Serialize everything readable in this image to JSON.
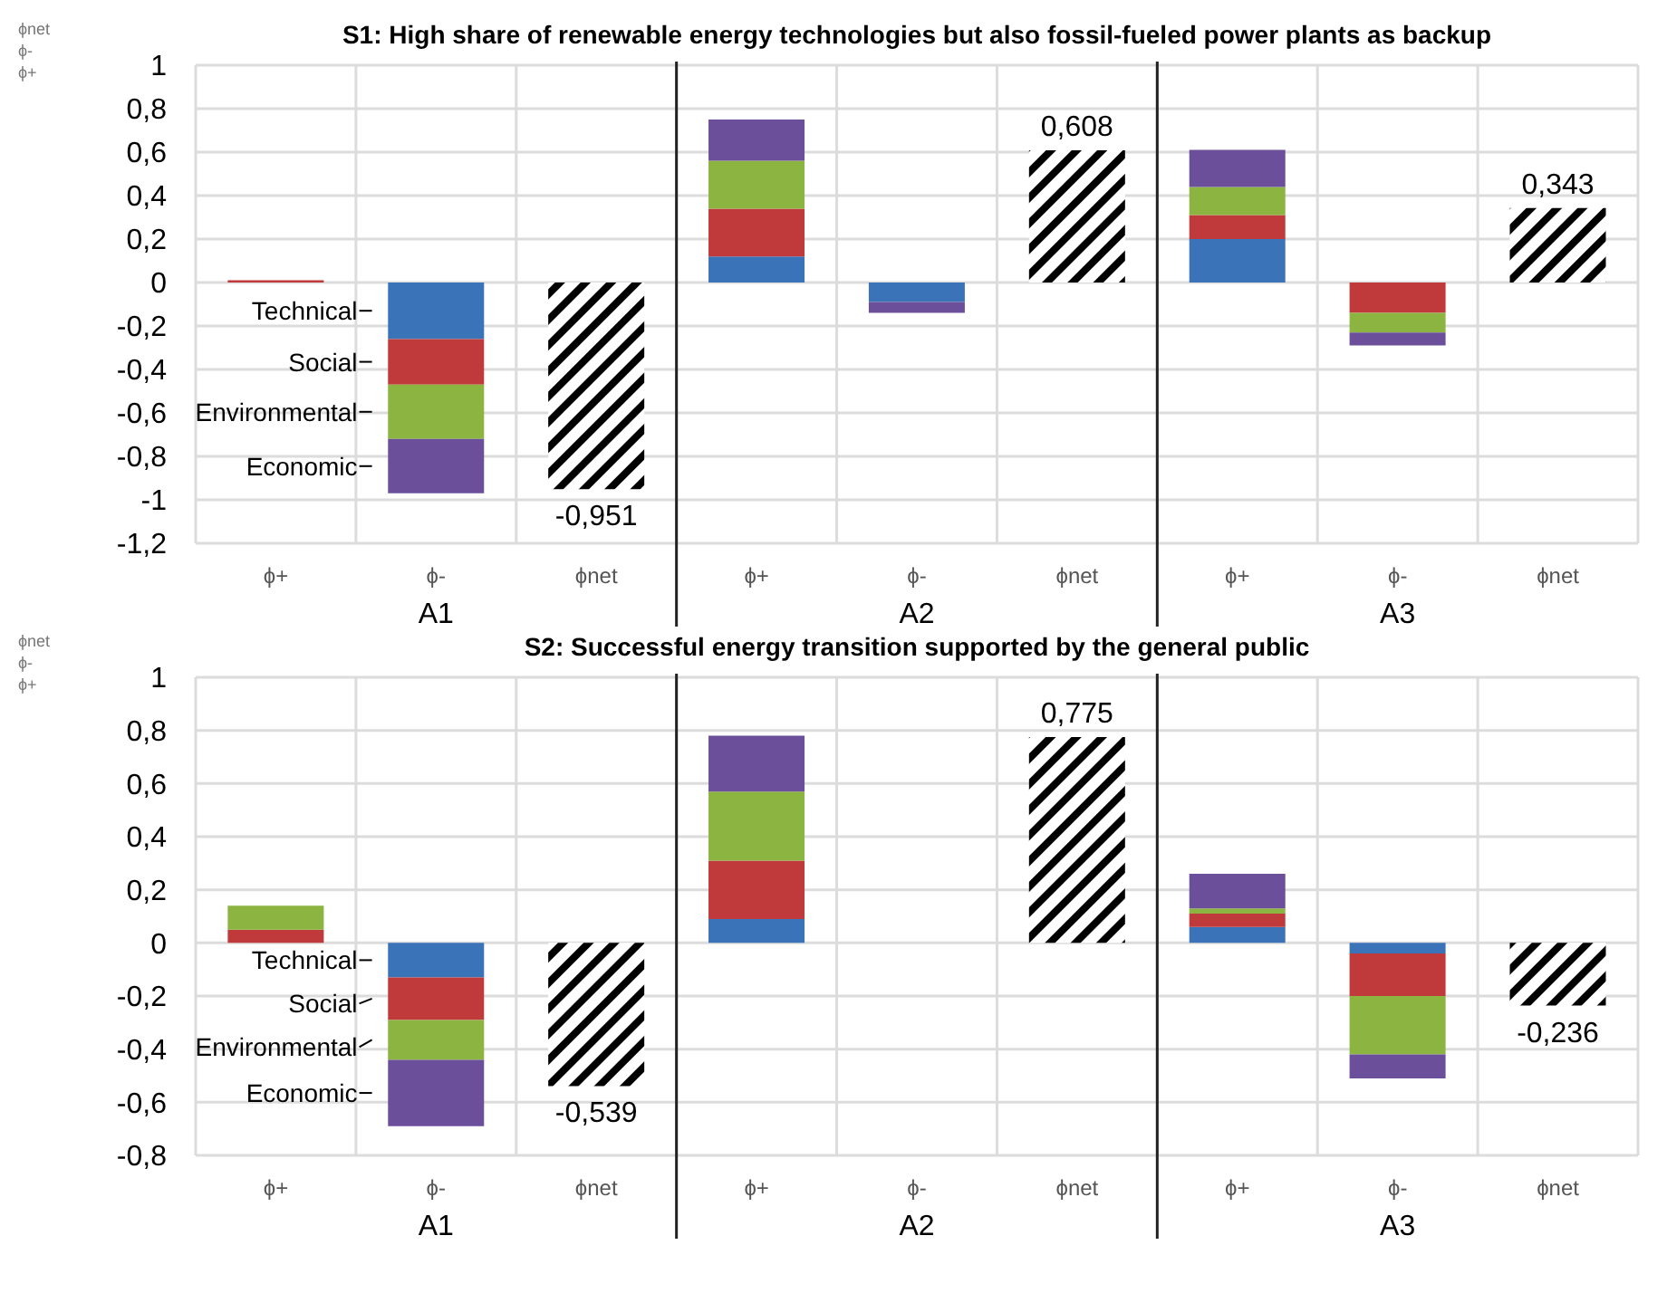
{
  "chart_data": [
    {
      "type": "bar",
      "title": "S1: High share of renewable energy technologies but also fossil-fueled power plants as backup",
      "categories": [
        "ϕ+",
        "ϕ-",
        "ϕnet",
        "ϕ+",
        "ϕ-",
        "ϕnet",
        "ϕ+",
        "ϕ-",
        "ϕnet"
      ],
      "stacked": true,
      "grid": true,
      "ylim": [
        -1.2,
        1
      ],
      "yticks": [
        {
          "value": -1.2,
          "label": "-1,2"
        },
        -1,
        {
          "value": -0.8,
          "label": "-0,8"
        },
        {
          "value": -0.6,
          "label": "-0,6"
        },
        {
          "value": -0.4,
          "label": "-0,4"
        },
        {
          "value": -0.2,
          "label": "-0,2"
        },
        0,
        {
          "value": 0.2,
          "label": "0,2"
        },
        {
          "value": 0.4,
          "label": "0,4"
        },
        {
          "value": 0.6,
          "label": "0,6"
        },
        {
          "value": 0.8,
          "label": "0,8"
        },
        1
      ],
      "annotations": [
        "ϕnet",
        "ϕ-",
        "ϕ+",
        "A1",
        "A2",
        "A3"
      ],
      "series": [
        {
          "name": "Technical",
          "color": "#3b73b9",
          "values": [
            null,
            -0.26,
            null,
            0.12,
            -0.09,
            null,
            0.2,
            null,
            null
          ]
        },
        {
          "name": "Social",
          "color": "#c0393b",
          "values": [
            0.01,
            -0.21,
            null,
            0.22,
            null,
            null,
            0.11,
            -0.14,
            null
          ]
        },
        {
          "name": "Environmental",
          "color": "#8bb440",
          "values": [
            null,
            -0.25,
            null,
            0.22,
            null,
            null,
            0.13,
            -0.09,
            null
          ]
        },
        {
          "name": "Economic",
          "color": "#6c4f9a",
          "values": [
            null,
            -0.25,
            null,
            0.19,
            -0.05,
            null,
            0.17,
            -0.06,
            null
          ]
        },
        {
          "color": "#000000",
          "values": [
            null,
            null,
            -0.951,
            null,
            null,
            0.608,
            null,
            null,
            0.343
          ],
          "value_labels": [
            null,
            null,
            "-0,951",
            null,
            null,
            "0,608",
            null,
            null,
            "0,343"
          ]
        }
      ]
    },
    {
      "type": "bar",
      "title": "S2: Successful energy transition supported by the general public",
      "categories": [
        "ϕ+",
        "ϕ-",
        "ϕnet",
        "ϕ+",
        "ϕ-",
        "ϕnet",
        "ϕ+",
        "ϕ-",
        "ϕnet"
      ],
      "stacked": true,
      "grid": true,
      "ylim": [
        -0.8,
        1
      ],
      "yticks": [
        {
          "value": -0.8,
          "label": "-0,8"
        },
        {
          "value": -0.6,
          "label": "-0,6"
        },
        {
          "value": -0.4,
          "label": "-0,4"
        },
        {
          "value": -0.2,
          "label": "-0,2"
        },
        0,
        {
          "value": 0.2,
          "label": "0,2"
        },
        {
          "value": 0.4,
          "label": "0,4"
        },
        {
          "value": 0.6,
          "label": "0,6"
        },
        {
          "value": 0.8,
          "label": "0,8"
        },
        1
      ],
      "annotations": [
        "ϕnet",
        "ϕ-",
        "ϕ+",
        "A1",
        "A2",
        "A3"
      ],
      "series": [
        {
          "name": "Technical",
          "color": "#3b73b9",
          "values": [
            null,
            -0.13,
            null,
            0.09,
            null,
            null,
            0.06,
            -0.04,
            null
          ]
        },
        {
          "name": "Social",
          "color": "#c0393b",
          "values": [
            0.05,
            -0.16,
            null,
            0.22,
            null,
            null,
            0.05,
            -0.16,
            null
          ]
        },
        {
          "name": "Environmental",
          "color": "#8bb440",
          "values": [
            0.09,
            -0.15,
            null,
            0.26,
            null,
            null,
            0.02,
            -0.22,
            null
          ]
        },
        {
          "name": "Economic",
          "color": "#6c4f9a",
          "values": [
            null,
            -0.25,
            null,
            0.21,
            null,
            null,
            0.13,
            -0.09,
            null
          ]
        },
        {
          "color": "#000000",
          "values": [
            null,
            null,
            -0.539,
            null,
            null,
            0.775,
            null,
            null,
            -0.236
          ],
          "value_labels": [
            null,
            null,
            "-0,539",
            null,
            null,
            "0,775",
            null,
            null,
            "-0,236"
          ]
        }
      ]
    }
  ]
}
